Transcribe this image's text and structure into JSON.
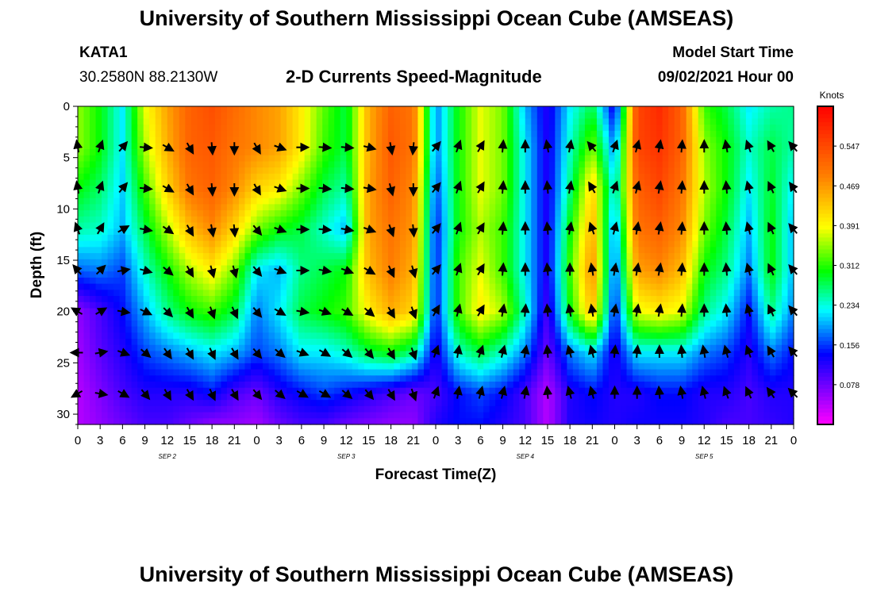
{
  "header": {
    "title": "University of Southern Mississippi Ocean Cube (AMSEAS)",
    "station": "KATA1",
    "coords": "30.2580N  88.2130W",
    "plot_name": "2-D Currents Speed-Magnitude",
    "model_start_label": "Model Start Time",
    "model_start_value": "09/02/2021 Hour 00"
  },
  "footer": {
    "title": "University of Southern Mississippi Ocean Cube (AMSEAS)"
  },
  "chart_data": {
    "type": "heatmap",
    "title": "2-D Currents Speed-Magnitude",
    "xlabel": "Forecast Time(Z)",
    "ylabel": "Depth (ft)",
    "x_tick_labels": [
      "0",
      "3",
      "6",
      "9",
      "12",
      "15",
      "18",
      "21",
      "0",
      "3",
      "6",
      "9",
      "12",
      "15",
      "18",
      "21",
      "0",
      "3",
      "6",
      "9",
      "12",
      "15",
      "18",
      "21",
      "0",
      "3",
      "6",
      "9",
      "12",
      "15",
      "18",
      "21",
      "0"
    ],
    "date_labels": [
      "SEP 2",
      "SEP 3",
      "SEP 4",
      "SEP 5"
    ],
    "xlim_hours": [
      0,
      96
    ],
    "ylim_ft": [
      0,
      31
    ],
    "y_ticks": [
      0,
      5,
      10,
      15,
      20,
      25,
      30
    ],
    "colorbar": {
      "unit": "Knots",
      "range": [
        0,
        0.625
      ],
      "tick_labels": [
        "0.547",
        "0.469",
        "0.391",
        "0.312",
        "0.234",
        "0.156",
        "0.078"
      ]
    },
    "grid": {
      "hours": [
        0,
        3,
        6,
        9,
        12,
        15,
        18,
        21,
        24,
        27,
        30,
        33,
        36,
        39,
        42,
        45,
        48,
        51,
        54,
        57,
        60,
        63,
        66,
        69,
        72,
        75,
        78,
        81,
        84,
        87,
        90,
        93,
        96
      ],
      "depths": [
        0,
        4,
        8,
        12,
        16,
        20,
        24,
        28,
        31
      ],
      "speeds": [
        [
          0.35,
          0.3,
          0.22,
          0.38,
          0.46,
          0.52,
          0.54,
          0.51,
          0.48,
          0.46,
          0.4,
          0.33,
          0.28,
          0.45,
          0.52,
          0.5,
          0.18,
          0.3,
          0.38,
          0.34,
          0.2,
          0.12,
          0.22,
          0.28,
          0.12,
          0.55,
          0.58,
          0.52,
          0.32,
          0.28,
          0.22,
          0.25,
          0.26
        ],
        [
          0.35,
          0.3,
          0.22,
          0.36,
          0.45,
          0.52,
          0.53,
          0.5,
          0.48,
          0.46,
          0.4,
          0.32,
          0.28,
          0.45,
          0.53,
          0.5,
          0.18,
          0.3,
          0.38,
          0.34,
          0.22,
          0.12,
          0.24,
          0.34,
          0.18,
          0.55,
          0.57,
          0.52,
          0.35,
          0.3,
          0.24,
          0.28,
          0.25
        ],
        [
          0.3,
          0.27,
          0.21,
          0.32,
          0.42,
          0.5,
          0.52,
          0.48,
          0.42,
          0.4,
          0.34,
          0.28,
          0.25,
          0.46,
          0.52,
          0.48,
          0.16,
          0.3,
          0.38,
          0.34,
          0.22,
          0.12,
          0.26,
          0.42,
          0.22,
          0.52,
          0.55,
          0.5,
          0.36,
          0.3,
          0.22,
          0.29,
          0.22
        ],
        [
          0.25,
          0.24,
          0.2,
          0.28,
          0.36,
          0.44,
          0.48,
          0.42,
          0.34,
          0.3,
          0.28,
          0.24,
          0.2,
          0.46,
          0.5,
          0.47,
          0.14,
          0.3,
          0.36,
          0.32,
          0.22,
          0.12,
          0.3,
          0.45,
          0.18,
          0.5,
          0.52,
          0.48,
          0.34,
          0.28,
          0.2,
          0.3,
          0.2
        ],
        [
          0.17,
          0.18,
          0.16,
          0.24,
          0.3,
          0.36,
          0.4,
          0.34,
          0.22,
          0.2,
          0.26,
          0.28,
          0.3,
          0.44,
          0.49,
          0.45,
          0.14,
          0.32,
          0.38,
          0.32,
          0.22,
          0.12,
          0.32,
          0.48,
          0.16,
          0.46,
          0.48,
          0.44,
          0.3,
          0.26,
          0.18,
          0.3,
          0.2
        ],
        [
          0.06,
          0.1,
          0.14,
          0.2,
          0.26,
          0.3,
          0.32,
          0.28,
          0.18,
          0.22,
          0.28,
          0.3,
          0.32,
          0.4,
          0.45,
          0.42,
          0.14,
          0.32,
          0.4,
          0.36,
          0.24,
          0.1,
          0.3,
          0.44,
          0.14,
          0.38,
          0.4,
          0.38,
          0.26,
          0.22,
          0.14,
          0.26,
          0.18
        ],
        [
          0.05,
          0.09,
          0.12,
          0.16,
          0.18,
          0.2,
          0.22,
          0.2,
          0.16,
          0.18,
          0.22,
          0.22,
          0.24,
          0.28,
          0.3,
          0.26,
          0.12,
          0.24,
          0.28,
          0.24,
          0.18,
          0.08,
          0.18,
          0.22,
          0.12,
          0.22,
          0.22,
          0.22,
          0.18,
          0.16,
          0.12,
          0.18,
          0.14
        ],
        [
          0.04,
          0.07,
          0.1,
          0.12,
          0.12,
          0.12,
          0.14,
          0.1,
          0.08,
          0.12,
          0.14,
          0.16,
          0.14,
          0.12,
          0.1,
          0.08,
          0.1,
          0.14,
          0.16,
          0.14,
          0.1,
          0.04,
          0.12,
          0.14,
          0.12,
          0.12,
          0.14,
          0.14,
          0.12,
          0.12,
          0.1,
          0.12,
          0.12
        ],
        [
          0.04,
          0.06,
          0.08,
          0.1,
          0.1,
          0.08,
          0.06,
          0.06,
          0.05,
          0.08,
          0.1,
          0.1,
          0.08,
          0.07,
          0.06,
          0.06,
          0.12,
          0.14,
          0.14,
          0.12,
          0.1,
          0.04,
          0.12,
          0.13,
          0.12,
          0.13,
          0.13,
          0.13,
          0.12,
          0.1,
          0.1,
          0.11,
          0.12
        ]
      ]
    },
    "vectors": {
      "hours": [
        0,
        3,
        6,
        9,
        12,
        15,
        18,
        21,
        24,
        27,
        30,
        33,
        36,
        39,
        42,
        45,
        48,
        51,
        54,
        57,
        60,
        63,
        66,
        69,
        72,
        75,
        78,
        81,
        84,
        87,
        90,
        93,
        96
      ],
      "depths": [
        4,
        8,
        12,
        16,
        20,
        24,
        28
      ],
      "direction_deg": [
        [
          350,
          20,
          40,
          95,
          120,
          150,
          175,
          180,
          150,
          110,
          90,
          95,
          95,
          105,
          170,
          185,
          40,
          20,
          30,
          5,
          0,
          350,
          10,
          320,
          20,
          15,
          10,
          5,
          0,
          350,
          340,
          330,
          320
        ],
        [
          350,
          20,
          40,
          95,
          120,
          150,
          175,
          180,
          150,
          110,
          90,
          95,
          95,
          100,
          165,
          180,
          40,
          20,
          30,
          5,
          0,
          355,
          10,
          330,
          20,
          15,
          10,
          5,
          0,
          355,
          345,
          335,
          325
        ],
        [
          340,
          30,
          60,
          100,
          125,
          150,
          170,
          175,
          140,
          110,
          90,
          95,
          100,
          110,
          160,
          175,
          40,
          20,
          30,
          5,
          0,
          355,
          10,
          340,
          15,
          10,
          10,
          5,
          0,
          355,
          345,
          335,
          320
        ],
        [
          320,
          45,
          80,
          105,
          130,
          150,
          165,
          165,
          140,
          110,
          90,
          100,
          110,
          120,
          155,
          165,
          40,
          20,
          30,
          5,
          0,
          355,
          0,
          350,
          10,
          10,
          10,
          5,
          0,
          355,
          345,
          335,
          320
        ],
        [
          300,
          60,
          100,
          115,
          135,
          150,
          160,
          155,
          140,
          120,
          100,
          110,
          120,
          130,
          150,
          160,
          30,
          15,
          30,
          10,
          5,
          355,
          350,
          350,
          10,
          10,
          10,
          5,
          0,
          355,
          345,
          335,
          320
        ],
        [
          270,
          80,
          110,
          130,
          145,
          150,
          155,
          150,
          140,
          130,
          110,
          120,
          130,
          140,
          150,
          160,
          20,
          10,
          20,
          15,
          10,
          355,
          345,
          345,
          5,
          5,
          0,
          355,
          350,
          345,
          340,
          330,
          320
        ],
        [
          240,
          100,
          120,
          140,
          150,
          150,
          155,
          150,
          140,
          130,
          120,
          120,
          130,
          140,
          150,
          160,
          20,
          10,
          15,
          15,
          10,
          355,
          345,
          345,
          0,
          0,
          355,
          350,
          345,
          340,
          335,
          325,
          315
        ]
      ]
    }
  }
}
